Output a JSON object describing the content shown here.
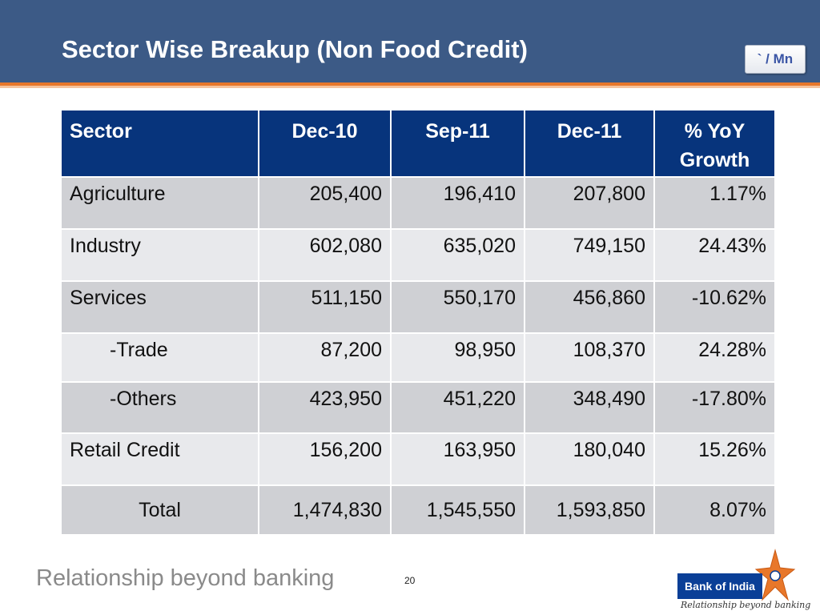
{
  "slide": {
    "title": "Sector Wise Breakup (Non Food Credit)",
    "unit": "` / Mn",
    "page_number": "20"
  },
  "table": {
    "headers": [
      "Sector",
      "Dec-10",
      "Sep-11",
      "Dec-11",
      "%  YoY Growth"
    ],
    "rows": [
      {
        "sector": "Agriculture",
        "dec10": "205,400",
        "sep11": "196,410",
        "dec11": "207,800",
        "growth": "1.17%"
      },
      {
        "sector": "Industry",
        "dec10": "602,080",
        "sep11": "635,020",
        "dec11": "749,150",
        "growth": "24.43%"
      },
      {
        "sector": "Services",
        "dec10": "511,150",
        "sep11": "550,170",
        "dec11": "456,860",
        "growth": "-10.62%"
      },
      {
        "sector": "-Trade",
        "dec10": "87,200",
        "sep11": "98,950",
        "dec11": "108,370",
        "growth": "24.28%"
      },
      {
        "sector": "-Others",
        "dec10": "423,950",
        "sep11": "451,220",
        "dec11": "348,490",
        "growth": "-17.80%"
      },
      {
        "sector": "Retail  Credit",
        "dec10": "156,200",
        "sep11": "163,950",
        "dec11": "180,040",
        "growth": "15.26%"
      },
      {
        "sector": "Total",
        "dec10": "1,474,830",
        "sep11": "1,545,550",
        "dec11": "1,593,850",
        "growth": "8.07%"
      }
    ]
  },
  "footer": {
    "tagline": "Relationship beyond banking",
    "logo_name": "Bank of India",
    "logo_tagline": "Relationship beyond banking",
    "logo_icon": "star-icon"
  },
  "colors": {
    "header_bg": "#3c5a86",
    "accent_orange": "#e8772a",
    "table_header_bg": "#07347c",
    "row_dark": "#cfd0d4",
    "row_light": "#e8e9ec"
  }
}
